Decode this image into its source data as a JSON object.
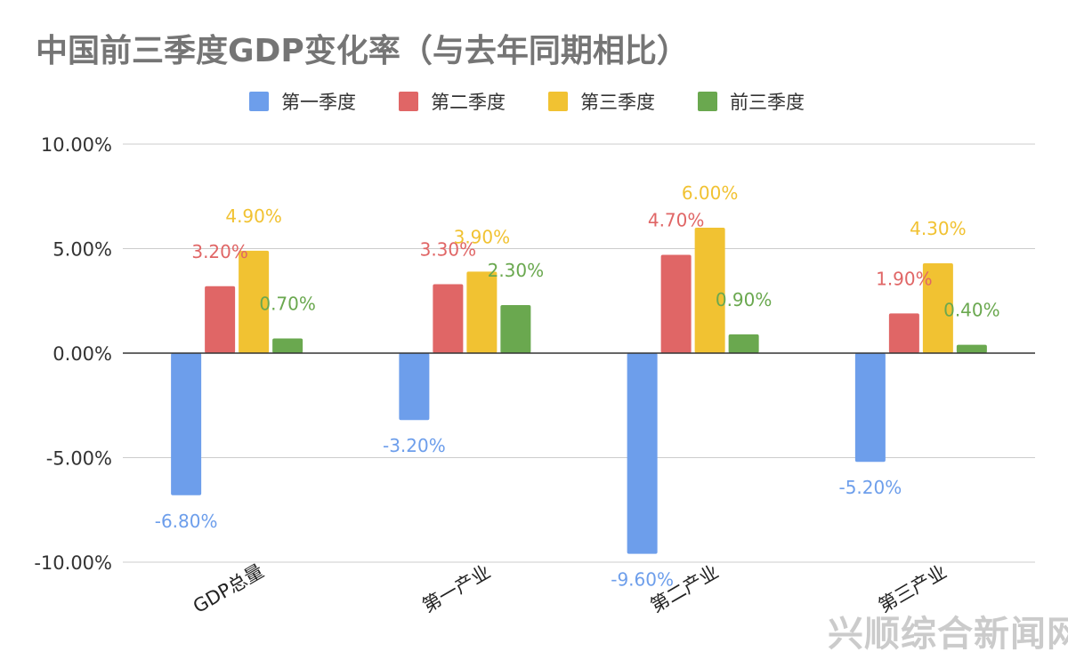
{
  "chart_data": {
    "type": "bar",
    "title": "中国前三季度GDP变化率（与去年同期相比）",
    "categories": [
      "GDP总量",
      "第一产业",
      "第二产业",
      "第三产业"
    ],
    "series": [
      {
        "name": "第一季度",
        "color": "#6d9eeb",
        "values": [
          -6.8,
          -3.2,
          -9.6,
          -5.2
        ],
        "labels": [
          "-6.80%",
          "-3.20%",
          "-9.60%",
          "-5.20%"
        ]
      },
      {
        "name": "第二季度",
        "color": "#e06666",
        "values": [
          3.2,
          3.3,
          4.7,
          1.9
        ],
        "labels": [
          "3.20%",
          "3.30%",
          "4.70%",
          "1.90%"
        ]
      },
      {
        "name": "第三季度",
        "color": "#f1c232",
        "values": [
          4.9,
          3.9,
          6.0,
          4.3
        ],
        "labels": [
          "4.90%",
          "3.90%",
          "6.00%",
          "4.30%"
        ]
      },
      {
        "name": "前三季度",
        "color": "#6aa84f",
        "values": [
          0.7,
          2.3,
          0.9,
          0.4
        ],
        "labels": [
          "0.70%",
          "2.30%",
          "0.90%",
          "0.40%"
        ]
      }
    ],
    "y_ticks": [
      10,
      5,
      0,
      -5,
      -10
    ],
    "y_tick_labels": [
      "10.00%",
      "5.00%",
      "0.00%",
      "-5.00%",
      "-10.00%"
    ],
    "ylim": [
      -10,
      10
    ],
    "grid": true,
    "legend_position": "top"
  },
  "watermark": "兴顺综合新闻网"
}
